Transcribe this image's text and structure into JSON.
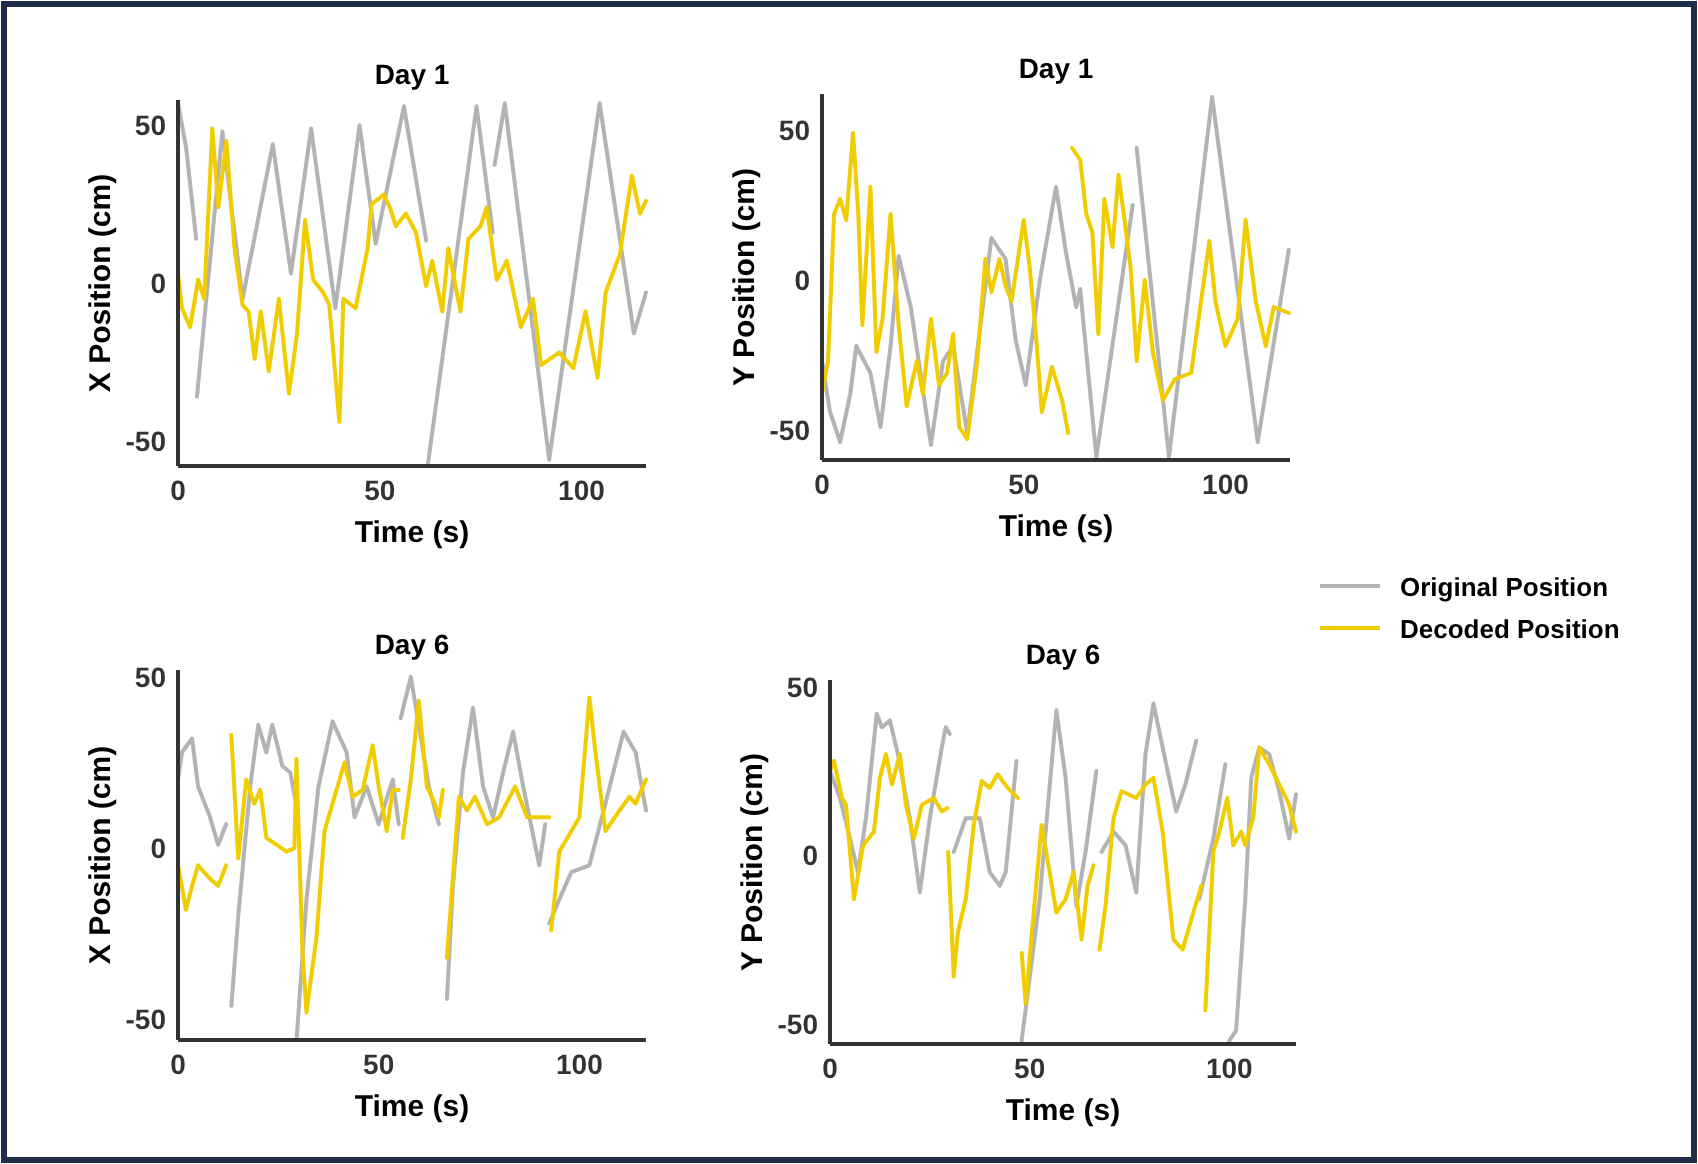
{
  "chart_data": [
    {
      "type": "line",
      "title": "Day 1",
      "xlabel": "Time (s)",
      "ylabel": "X Position (cm)",
      "xlim": [
        0,
        116
      ],
      "ylim": [
        -58,
        58
      ],
      "xticks": [
        0,
        50,
        100
      ],
      "yticks": [
        -50,
        0,
        50
      ],
      "series": [
        {
          "color": "#b3b3b3",
          "x": [
            0,
            2,
            4.5,
            4.6,
            4.7,
            11,
            16,
            23.5,
            28,
            33,
            39,
            45,
            49,
            56,
            61.5,
            61.8,
            62,
            74,
            78,
            78.3,
            78.5,
            81,
            92,
            104.5,
            113,
            116
          ],
          "values": [
            57,
            43,
            14,
            null,
            -36,
            48,
            -5,
            44,
            3,
            49,
            -8,
            50,
            12.5,
            56,
            13.5,
            null,
            -57,
            56,
            16,
            null,
            37.5,
            57,
            -56,
            57,
            -16,
            -3
          ]
        },
        {
          "color": "#f0cc00",
          "x": [
            0,
            1,
            3,
            5,
            6.5,
            8.5,
            10,
            12,
            14,
            16,
            17.5,
            19,
            20.5,
            22.5,
            25,
            27.5,
            29.5,
            31.5,
            33.5,
            36,
            37.5,
            40,
            41,
            44,
            47,
            48,
            51,
            52.5,
            54,
            56.5,
            59,
            61.5,
            63,
            65.5,
            67,
            70,
            72,
            75,
            76.5,
            79,
            81.5,
            85,
            88,
            90,
            94.5,
            98,
            101,
            104,
            106,
            109.5,
            112.5,
            114.5,
            116
          ],
          "values": [
            3,
            -8,
            -14,
            1,
            -5,
            49,
            24,
            45,
            11,
            -7,
            -9,
            -24,
            -9,
            -28,
            -5,
            -35,
            -16,
            20,
            1,
            -3,
            -7,
            -44,
            -5,
            -8,
            11,
            25,
            28,
            24,
            18,
            22,
            16,
            -1,
            7,
            -9,
            11,
            -9,
            14,
            18,
            24,
            1,
            7,
            -14,
            -5,
            -26,
            -22,
            -27,
            -9,
            -30,
            -3,
            9,
            34,
            22,
            26
          ]
        }
      ]
    },
    {
      "type": "line",
      "title": "Day 1",
      "xlabel": "Time (s)",
      "ylabel": "Y Position (cm)",
      "xlim": [
        0,
        116
      ],
      "ylim": [
        -60,
        62
      ],
      "xticks": [
        0,
        50,
        100
      ],
      "yticks": [
        -50,
        0,
        50
      ],
      "legend": "right",
      "series": [
        {
          "name": "Original Position",
          "color": "#b3b3b3",
          "x": [
            0,
            2,
            4.5,
            7,
            8.5,
            12,
            14.5,
            17,
            19,
            22,
            27,
            30,
            32.5,
            36,
            39,
            42,
            45.5,
            48,
            50.5,
            54,
            58,
            60.5,
            63,
            64,
            68,
            77,
            77.5,
            78,
            86,
            96.7,
            108,
            115.7
          ],
          "values": [
            -27,
            -44,
            -54,
            -38,
            -22,
            -31,
            -49,
            -22,
            8,
            -9,
            -55,
            -27,
            -22,
            -51,
            -18,
            14,
            7,
            -20,
            -35,
            0,
            31,
            9,
            -9,
            -3,
            -59,
            25,
            null,
            44,
            -59,
            61,
            -54,
            10
          ]
        },
        {
          "name": "Decoded Position",
          "color": "#f0cc00",
          "x": [
            0,
            1.5,
            3,
            4.5,
            6,
            7.7,
            9,
            10,
            12,
            13.5,
            15,
            17,
            19,
            21,
            23.5,
            25,
            27,
            29,
            31,
            32.5,
            34,
            36,
            38.5,
            40.5,
            42,
            44,
            45.5,
            47,
            50,
            51.5,
            53,
            54.5,
            57,
            59.5,
            61,
            61.5,
            62,
            64,
            65.5,
            67,
            68.5,
            70,
            72,
            73.5,
            75,
            76.5,
            78,
            80,
            82,
            84.5,
            87.5,
            91.5,
            96,
            97.5,
            100,
            103,
            105,
            107.5,
            110,
            112,
            115.7
          ],
          "values": [
            -38,
            -27,
            22,
            27,
            20,
            49,
            22,
            -15,
            31,
            -24,
            -13,
            22,
            -15,
            -42,
            -27,
            -38,
            -13,
            -35,
            -31,
            -18,
            -49,
            -53,
            -27,
            7,
            -4,
            7,
            -2,
            -7,
            20,
            4,
            -18,
            -44,
            -29,
            -40,
            -51,
            null,
            44,
            40,
            22,
            16,
            -18,
            27,
            11,
            35,
            20,
            4,
            -27,
            0,
            -24,
            -40,
            -33,
            -31,
            13,
            -7,
            -22,
            -13,
            20,
            -7,
            -22,
            -9,
            -11
          ]
        }
      ]
    },
    {
      "type": "line",
      "title": "Day 6",
      "xlabel": "Time (s)",
      "ylabel": "X Position (cm)",
      "xlim": [
        0,
        116.6
      ],
      "ylim": [
        -56,
        52
      ],
      "xticks": [
        0,
        50,
        100
      ],
      "yticks": [
        -50,
        0,
        50
      ],
      "series": [
        {
          "color": "#b3b3b3",
          "x": [
            0,
            1,
            3.5,
            5,
            8,
            10,
            12,
            12.6,
            13.3,
            15,
            18,
            20,
            22,
            23.5,
            26,
            28,
            29.4,
            29.5,
            29.6,
            32,
            35,
            38.5,
            42,
            44,
            47,
            50,
            53.5,
            55,
            55.2,
            55.5,
            58,
            60,
            62.5,
            65,
            66,
            67,
            68.5,
            71,
            73.5,
            76,
            78.5,
            81,
            83.5,
            86,
            90,
            91.5,
            92,
            92.5,
            95,
            98,
            102.5,
            106.5,
            111,
            114,
            116.6
          ],
          "values": [
            20,
            28,
            32,
            18,
            9,
            1,
            7,
            null,
            -46,
            -20,
            18,
            36,
            28,
            36,
            24,
            22,
            13,
            null,
            -55,
            -15,
            18,
            37,
            28,
            9,
            18,
            7,
            20,
            7,
            null,
            38,
            50,
            36,
            18,
            7,
            null,
            -44,
            -11,
            22,
            41,
            18,
            9,
            22,
            34,
            18,
            -5,
            7,
            null,
            -22,
            -15,
            -7,
            -5,
            13,
            34,
            28,
            11
          ]
        },
        {
          "color": "#f0cc00",
          "x": [
            0,
            2,
            3.5,
            5,
            8,
            10,
            12,
            12.6,
            13.3,
            15,
            17,
            19,
            20.5,
            22,
            24.5,
            27,
            29,
            29.5,
            31,
            32,
            34.5,
            36.5,
            39.5,
            41.5,
            43.5,
            46,
            48.5,
            50,
            52,
            53.5,
            55,
            55.5,
            56,
            58,
            60,
            62,
            64,
            65,
            66,
            66.5,
            67,
            70,
            72,
            74,
            77,
            80,
            84,
            87,
            90,
            92.5,
            92.8,
            93,
            95,
            97.5,
            100,
            102.5,
            104,
            106.5,
            110,
            112.5,
            114,
            116.6
          ],
          "values": [
            -5,
            -18,
            -11,
            -5,
            -9,
            -11,
            -5,
            null,
            33,
            -3,
            20,
            13,
            17,
            3,
            1,
            -1,
            0,
            26,
            -30,
            -48,
            -26,
            5,
            17,
            25,
            15,
            17,
            30,
            18,
            5,
            17,
            17,
            null,
            3,
            20,
            43,
            18,
            13,
            9,
            17,
            null,
            -32,
            15,
            11,
            15,
            7,
            9,
            18,
            9,
            9,
            9,
            null,
            -24,
            -1,
            4,
            9,
            44,
            28,
            5,
            11,
            15,
            13,
            20
          ]
        }
      ]
    },
    {
      "type": "line",
      "title": "Day 6",
      "xlabel": "Time (s)",
      "ylabel": "Y Position (cm)",
      "xlim": [
        0,
        116.7
      ],
      "ylim": [
        -56,
        52
      ],
      "xticks": [
        0,
        50,
        100
      ],
      "yticks": [
        -50,
        0,
        50
      ],
      "series": [
        {
          "color": "#b3b3b3",
          "x": [
            0,
            2.5,
            5,
            7,
            9,
            11.7,
            13,
            15,
            17,
            20,
            22.5,
            25,
            28,
            29,
            30,
            30.5,
            31,
            34,
            37.5,
            40,
            42.5,
            44,
            46.7,
            47.3,
            48,
            52.5,
            56.7,
            59,
            61.7,
            64,
            66.7,
            67.3,
            68,
            71,
            74,
            76.7,
            79,
            81,
            83.3,
            86.7,
            89,
            91.7,
            92.1,
            92.5,
            96,
            99,
            99.5,
            100,
            101.7,
            104,
            105.5,
            107.5,
            110,
            112.5,
            115,
            116.7
          ],
          "values": [
            25,
            17,
            5,
            -5,
            11,
            42,
            38,
            40,
            30,
            11,
            -11,
            11,
            32,
            38,
            36,
            null,
            1,
            11,
            11,
            -5,
            -9,
            -5,
            28,
            null,
            -55,
            -13,
            43,
            23,
            -15,
            1,
            25,
            null,
            1,
            7,
            3,
            -11,
            30,
            45,
            32,
            13,
            21,
            34,
            null,
            -13,
            5,
            27,
            null,
            -55,
            -52,
            -13,
            23,
            32,
            30,
            19,
            5,
            18
          ]
        },
        {
          "color": "#f0cc00",
          "x": [
            0,
            1,
            3,
            4,
            6,
            8.3,
            11,
            12.5,
            14,
            15.5,
            17.5,
            19,
            21,
            23,
            26,
            28,
            29.4,
            29.5,
            29.6,
            31,
            32,
            34,
            36,
            38,
            40,
            42,
            44.5,
            47,
            47.5,
            48,
            49,
            51,
            53,
            55,
            56.7,
            59,
            61,
            63,
            64.5,
            66,
            66.7,
            67.5,
            69,
            71,
            73,
            76.7,
            79,
            81,
            83.3,
            86,
            88.3,
            91,
            93,
            93.5,
            94,
            96,
            97.5,
            99.5,
            101,
            103,
            104,
            106,
            107.5,
            110,
            112.5,
            115,
            116.7
          ],
          "values": [
            25,
            28,
            17,
            15,
            -13,
            3,
            7,
            23,
            30,
            21,
            30,
            15,
            5,
            15,
            17,
            13,
            14,
            null,
            1,
            -36,
            -23,
            -13,
            9,
            22,
            20,
            24,
            20,
            17,
            null,
            -29,
            -44,
            -17,
            9,
            -5,
            -17,
            -13,
            -5,
            -25,
            -9,
            -3,
            null,
            -28,
            -15,
            11,
            19,
            17,
            21,
            23,
            7,
            -25,
            -28,
            -17,
            -9,
            null,
            -46,
            1,
            7,
            17,
            3,
            7,
            3,
            11,
            32,
            27,
            21,
            15,
            7
          ]
        }
      ]
    }
  ]
}
